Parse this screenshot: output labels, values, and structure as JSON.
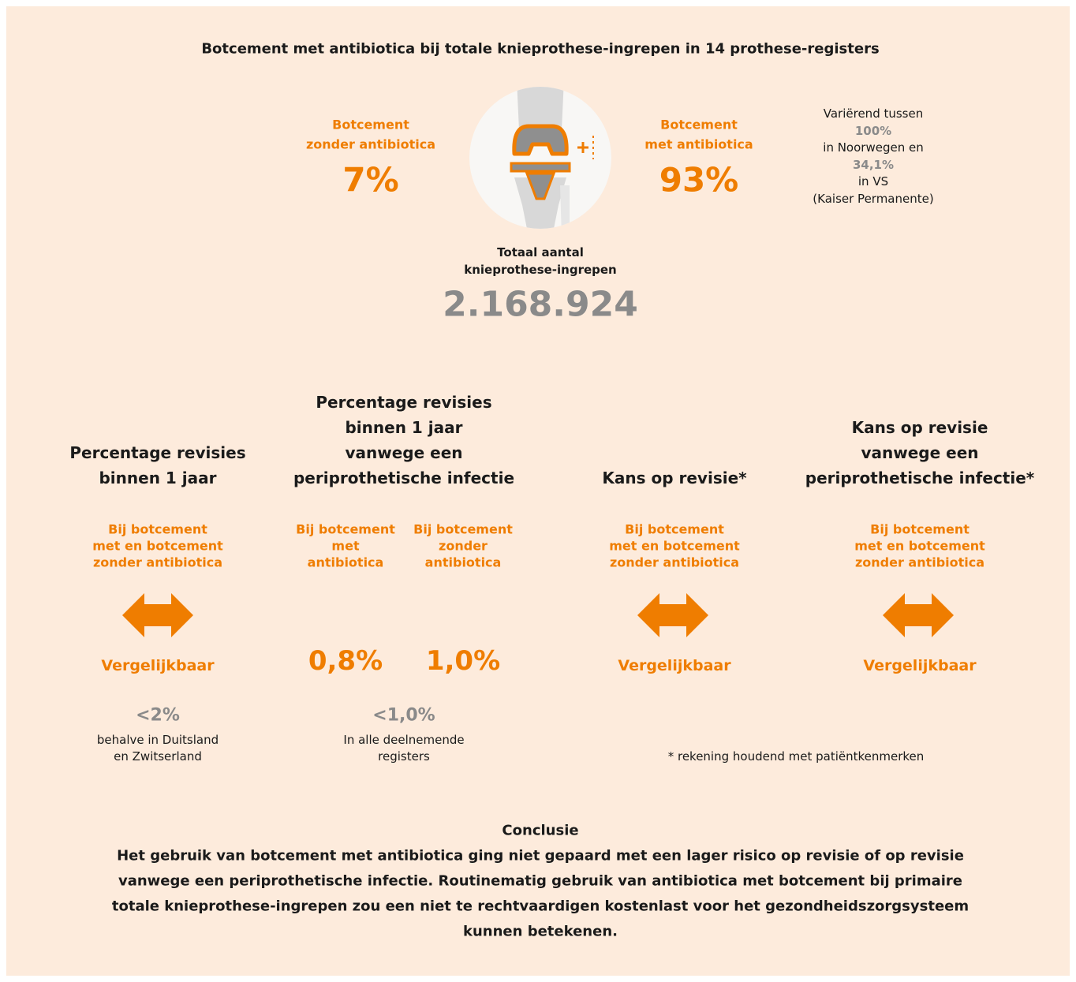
{
  "header": {
    "title": "Botcement met antibiotica bij totale knieprothese-ingrepen in 14 prothese-registers"
  },
  "top": {
    "left": {
      "label": [
        "Botcement",
        "zonder antibiotica"
      ],
      "value": "7%"
    },
    "right": {
      "label": [
        "Botcement",
        "met antibiotica"
      ],
      "value": "93%"
    },
    "note": [
      "Variërend tussen",
      "100%",
      "in Noorwegen en",
      "34,1%",
      "in VS",
      "(Kaiser Permanente)"
    ],
    "total": {
      "label": [
        "Totaal aantal",
        "knieprothese-ingrepen"
      ],
      "value": "2.168.924"
    }
  },
  "panels": [
    {
      "title": [
        "Percentage revisies",
        "binnen 1 jaar"
      ],
      "subtitle": [
        "Bij botcement",
        "met en botcement",
        "zonder antibiotica"
      ],
      "result": "Vergelijkbaar",
      "stat": "<2%",
      "stat_note": [
        "behalve in Duitsland",
        "en Zwitserland"
      ]
    },
    {
      "title": [
        "Percentage revisies",
        "binnen 1 jaar",
        "vanwege een",
        "periprothetische infectie"
      ],
      "columns": [
        {
          "subtitle": [
            "Bij botcement",
            "met",
            "antibiotica"
          ],
          "value": "0,8%"
        },
        {
          "subtitle": [
            "Bij botcement",
            "zonder",
            "antibiotica"
          ],
          "value": "1,0%"
        }
      ],
      "stat": "<1,0%",
      "stat_note": [
        "In alle deelnemende",
        "registers"
      ]
    },
    {
      "title": [
        "Kans op revisie*"
      ],
      "subtitle": [
        "Bij botcement",
        "met en botcement",
        "zonder antibiotica"
      ],
      "result": "Vergelijkbaar"
    },
    {
      "title": [
        "Kans op revisie",
        "vanwege een",
        "periprothetische infectie*"
      ],
      "subtitle": [
        "Bij botcement",
        "met en botcement",
        "zonder antibiotica"
      ],
      "result": "Vergelijkbaar"
    }
  ],
  "footnote": "* rekening houdend met patiëntkenmerken",
  "conclusion": {
    "title": "Conclusie",
    "lines": [
      "Het gebruik van botcement met antibiotica ging niet gepaard met een lager risico op revisie of op revisie",
      "vanwege een periprothetische infectie. Routinematig gebruik van antibiotica met botcement bij primaire",
      "totale knieprothese-ingrepen zou een niet te rechtvaardigen kostenlast voor het gezondheidszorgsysteem",
      "kunnen betekenen."
    ]
  }
}
